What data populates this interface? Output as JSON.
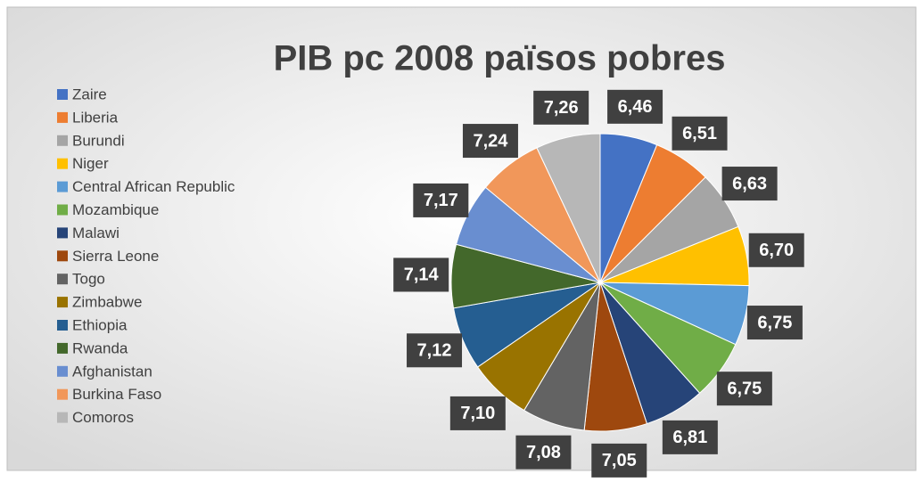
{
  "chart_data": {
    "type": "pie",
    "title": "PIB pc 2008 països pobres",
    "categories": [
      "Zaire",
      "Liberia",
      "Burundi",
      "Niger",
      "Central African Republic",
      "Mozambique",
      "Malawi",
      "Sierra Leone",
      "Togo",
      "Zimbabwe",
      "Ethiopia",
      "Rwanda",
      "Afghanistan",
      "Burkina Faso",
      "Comoros"
    ],
    "values": [
      6.46,
      6.51,
      6.63,
      6.7,
      6.75,
      6.75,
      6.81,
      7.05,
      7.08,
      7.1,
      7.12,
      7.14,
      7.17,
      7.24,
      7.26
    ],
    "value_labels": [
      "6,46",
      "6,51",
      "6,63",
      "6,70",
      "6,75",
      "6,75",
      "6,81",
      "7,05",
      "7,08",
      "7,10",
      "7,12",
      "7,14",
      "7,17",
      "7,24",
      "7,26"
    ],
    "colors": [
      "#4472c4",
      "#ed7d31",
      "#a5a5a5",
      "#ffc000",
      "#5b9bd5",
      "#70ad47",
      "#264478",
      "#9e480e",
      "#636363",
      "#997300",
      "#255e91",
      "#43682b",
      "#698ed0",
      "#f1975a",
      "#b7b7b7"
    ],
    "legend": "left"
  }
}
